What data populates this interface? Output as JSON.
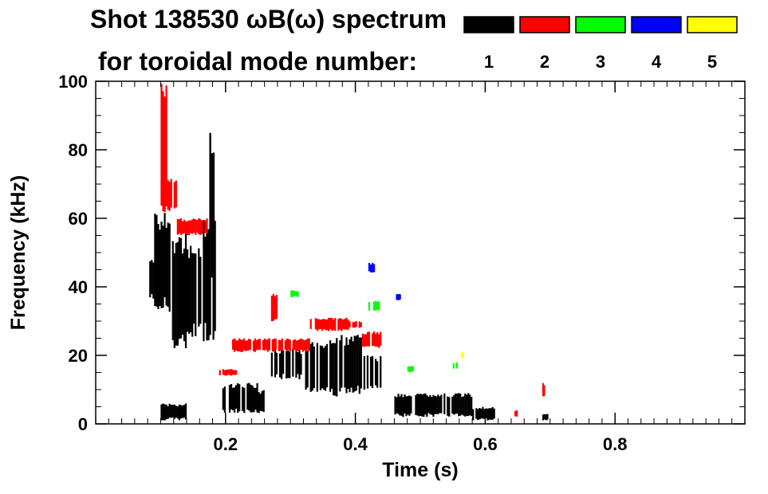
{
  "chart_data": {
    "type": "heatmap",
    "title_line1": "Shot 138530 ωB(ω) spectrum",
    "title_line2": "for toroidal mode number:",
    "xlabel": "Time (s)",
    "ylabel": "Frequency (kHz)",
    "xlim": [
      0.0,
      1.0
    ],
    "ylim": [
      0,
      100
    ],
    "x_ticks": [
      "0.2",
      "0.4",
      "0.6",
      "0.8"
    ],
    "x_tick_values": [
      0.2,
      0.4,
      0.6,
      0.8
    ],
    "y_ticks": [
      "0",
      "20",
      "40",
      "60",
      "80",
      "100"
    ],
    "y_tick_values": [
      0,
      20,
      40,
      60,
      80,
      100
    ],
    "grid": false,
    "legend_position": "top-right",
    "legend": [
      {
        "label": "1",
        "color": "#000000"
      },
      {
        "label": "2",
        "color": "#ff0000"
      },
      {
        "label": "3",
        "color": "#00ff00"
      },
      {
        "label": "4",
        "color": "#0000ff"
      },
      {
        "label": "5",
        "color": "#ffff00"
      }
    ],
    "regions": [
      {
        "mode": 1,
        "t0": 0.08,
        "t1": 0.1,
        "f0": 36,
        "f1": 48
      },
      {
        "mode": 1,
        "t0": 0.09,
        "t1": 0.115,
        "f0": 32,
        "f1": 62
      },
      {
        "mode": 1,
        "t0": 0.115,
        "t1": 0.14,
        "f0": 20,
        "f1": 56
      },
      {
        "mode": 1,
        "t0": 0.14,
        "t1": 0.165,
        "f0": 25,
        "f1": 52
      },
      {
        "mode": 1,
        "t0": 0.165,
        "t1": 0.185,
        "f0": 24,
        "f1": 60
      },
      {
        "mode": 1,
        "t0": 0.175,
        "t1": 0.183,
        "f0": 40,
        "f1": 85
      },
      {
        "mode": 1,
        "t0": 0.1,
        "t1": 0.14,
        "f0": 1,
        "f1": 6
      },
      {
        "mode": 1,
        "t0": 0.195,
        "t1": 0.25,
        "f0": 3,
        "f1": 12
      },
      {
        "mode": 1,
        "t0": 0.24,
        "t1": 0.26,
        "f0": 3,
        "f1": 10
      },
      {
        "mode": 1,
        "t0": 0.27,
        "t1": 0.32,
        "f0": 13,
        "f1": 22
      },
      {
        "mode": 1,
        "t0": 0.32,
        "t1": 0.36,
        "f0": 9,
        "f1": 24
      },
      {
        "mode": 1,
        "t0": 0.36,
        "t1": 0.41,
        "f0": 8,
        "f1": 26
      },
      {
        "mode": 1,
        "t0": 0.41,
        "t1": 0.44,
        "f0": 10,
        "f1": 20
      },
      {
        "mode": 1,
        "t0": 0.46,
        "t1": 0.58,
        "f0": 2,
        "f1": 9
      },
      {
        "mode": 1,
        "t0": 0.58,
        "t1": 0.615,
        "f0": 1,
        "f1": 5
      },
      {
        "mode": 1,
        "t0": 0.688,
        "t1": 0.697,
        "f0": 1,
        "f1": 3
      },
      {
        "mode": 2,
        "t0": 0.1,
        "t1": 0.11,
        "f0": 60,
        "f1": 100
      },
      {
        "mode": 2,
        "t0": 0.1,
        "t1": 0.125,
        "f0": 62,
        "f1": 72
      },
      {
        "mode": 2,
        "t0": 0.125,
        "t1": 0.175,
        "f0": 55,
        "f1": 60
      },
      {
        "mode": 2,
        "t0": 0.19,
        "t1": 0.22,
        "f0": 14,
        "f1": 16
      },
      {
        "mode": 2,
        "t0": 0.21,
        "t1": 0.33,
        "f0": 21,
        "f1": 25
      },
      {
        "mode": 2,
        "t0": 0.33,
        "t1": 0.39,
        "f0": 27,
        "f1": 31
      },
      {
        "mode": 2,
        "t0": 0.39,
        "t1": 0.41,
        "f0": 28,
        "f1": 30
      },
      {
        "mode": 2,
        "t0": 0.41,
        "t1": 0.44,
        "f0": 22,
        "f1": 27
      },
      {
        "mode": 2,
        "t0": 0.27,
        "t1": 0.28,
        "f0": 30,
        "f1": 38
      },
      {
        "mode": 2,
        "t0": 0.645,
        "t1": 0.65,
        "f0": 2,
        "f1": 4
      },
      {
        "mode": 2,
        "t0": 0.688,
        "t1": 0.692,
        "f0": 8,
        "f1": 12
      },
      {
        "mode": 3,
        "t0": 0.3,
        "t1": 0.32,
        "f0": 37,
        "f1": 39
      },
      {
        "mode": 3,
        "t0": 0.42,
        "t1": 0.44,
        "f0": 33,
        "f1": 36
      },
      {
        "mode": 3,
        "t0": 0.48,
        "t1": 0.49,
        "f0": 15,
        "f1": 17
      },
      {
        "mode": 3,
        "t0": 0.55,
        "t1": 0.56,
        "f0": 16,
        "f1": 18
      },
      {
        "mode": 4,
        "t0": 0.42,
        "t1": 0.43,
        "f0": 44,
        "f1": 47
      },
      {
        "mode": 4,
        "t0": 0.46,
        "t1": 0.47,
        "f0": 36,
        "f1": 38
      },
      {
        "mode": 5,
        "t0": 0.563,
        "t1": 0.567,
        "f0": 19,
        "f1": 21
      }
    ]
  }
}
